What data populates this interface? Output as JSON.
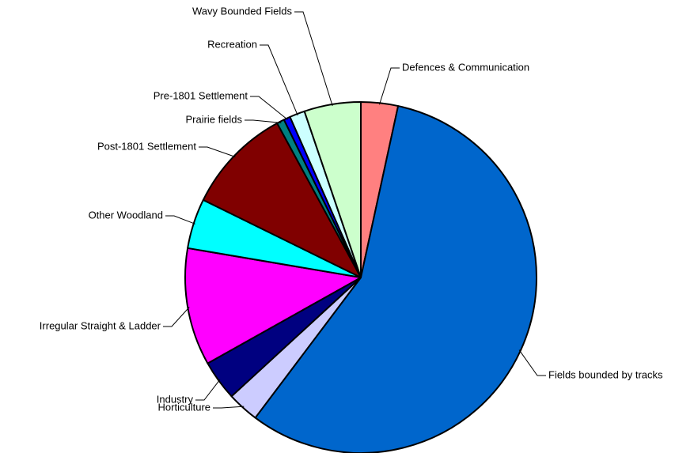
{
  "chart_data": {
    "type": "pie",
    "categories": [
      "Defences & Communication",
      "Fields bounded by tracks",
      "Horticulture",
      "Industry",
      "Irregular Straight & Ladder",
      "Other Woodland",
      "Post-1801 Settlement",
      "Prairie fields",
      "Pre-1801 Settlement",
      "Recreation",
      "Wavy Bounded Fields"
    ],
    "values": [
      3.4,
      56.8,
      2.9,
      3.7,
      10.8,
      4.6,
      9.8,
      0.7,
      0.6,
      1.4,
      5.2
    ],
    "colors": [
      "#ff8080",
      "#0066cc",
      "#ccccff",
      "#000080",
      "#ff00ff",
      "#00ffff",
      "#800000",
      "#008080",
      "#0000ff",
      "#ccffff",
      "#ccffcc"
    ]
  }
}
